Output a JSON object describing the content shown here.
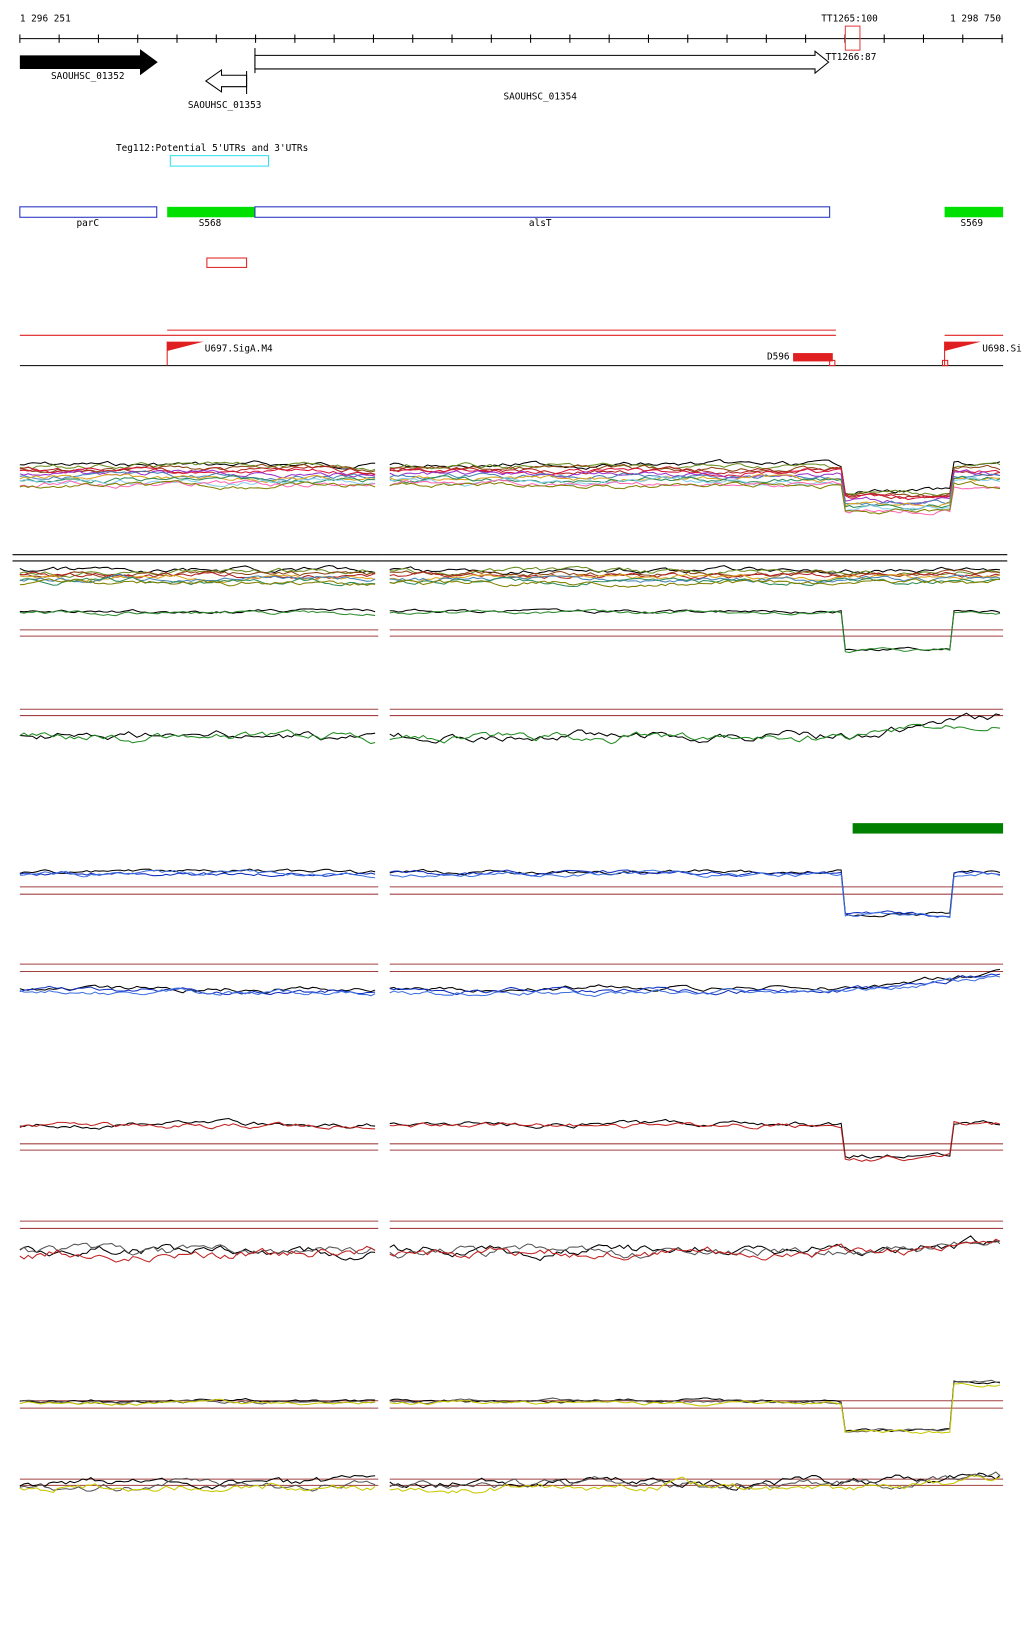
{
  "ruler": {
    "start": "1 296 251",
    "end": "1 298 750"
  },
  "terminators": [
    "TT1265:100",
    "TT1266:87"
  ],
  "genes": [
    "SAOUHSC_01352",
    "SAOUHSC_01353",
    "SAOUHSC_01354"
  ],
  "utr_track": "Teg112:Potential 5'UTRs and 3'UTRs",
  "segments": [
    "parC",
    "S568",
    "alsT",
    "S569"
  ],
  "promoters": [
    "U697.SigA.M4",
    "U698.Si"
  ],
  "downstream": "D596"
}
